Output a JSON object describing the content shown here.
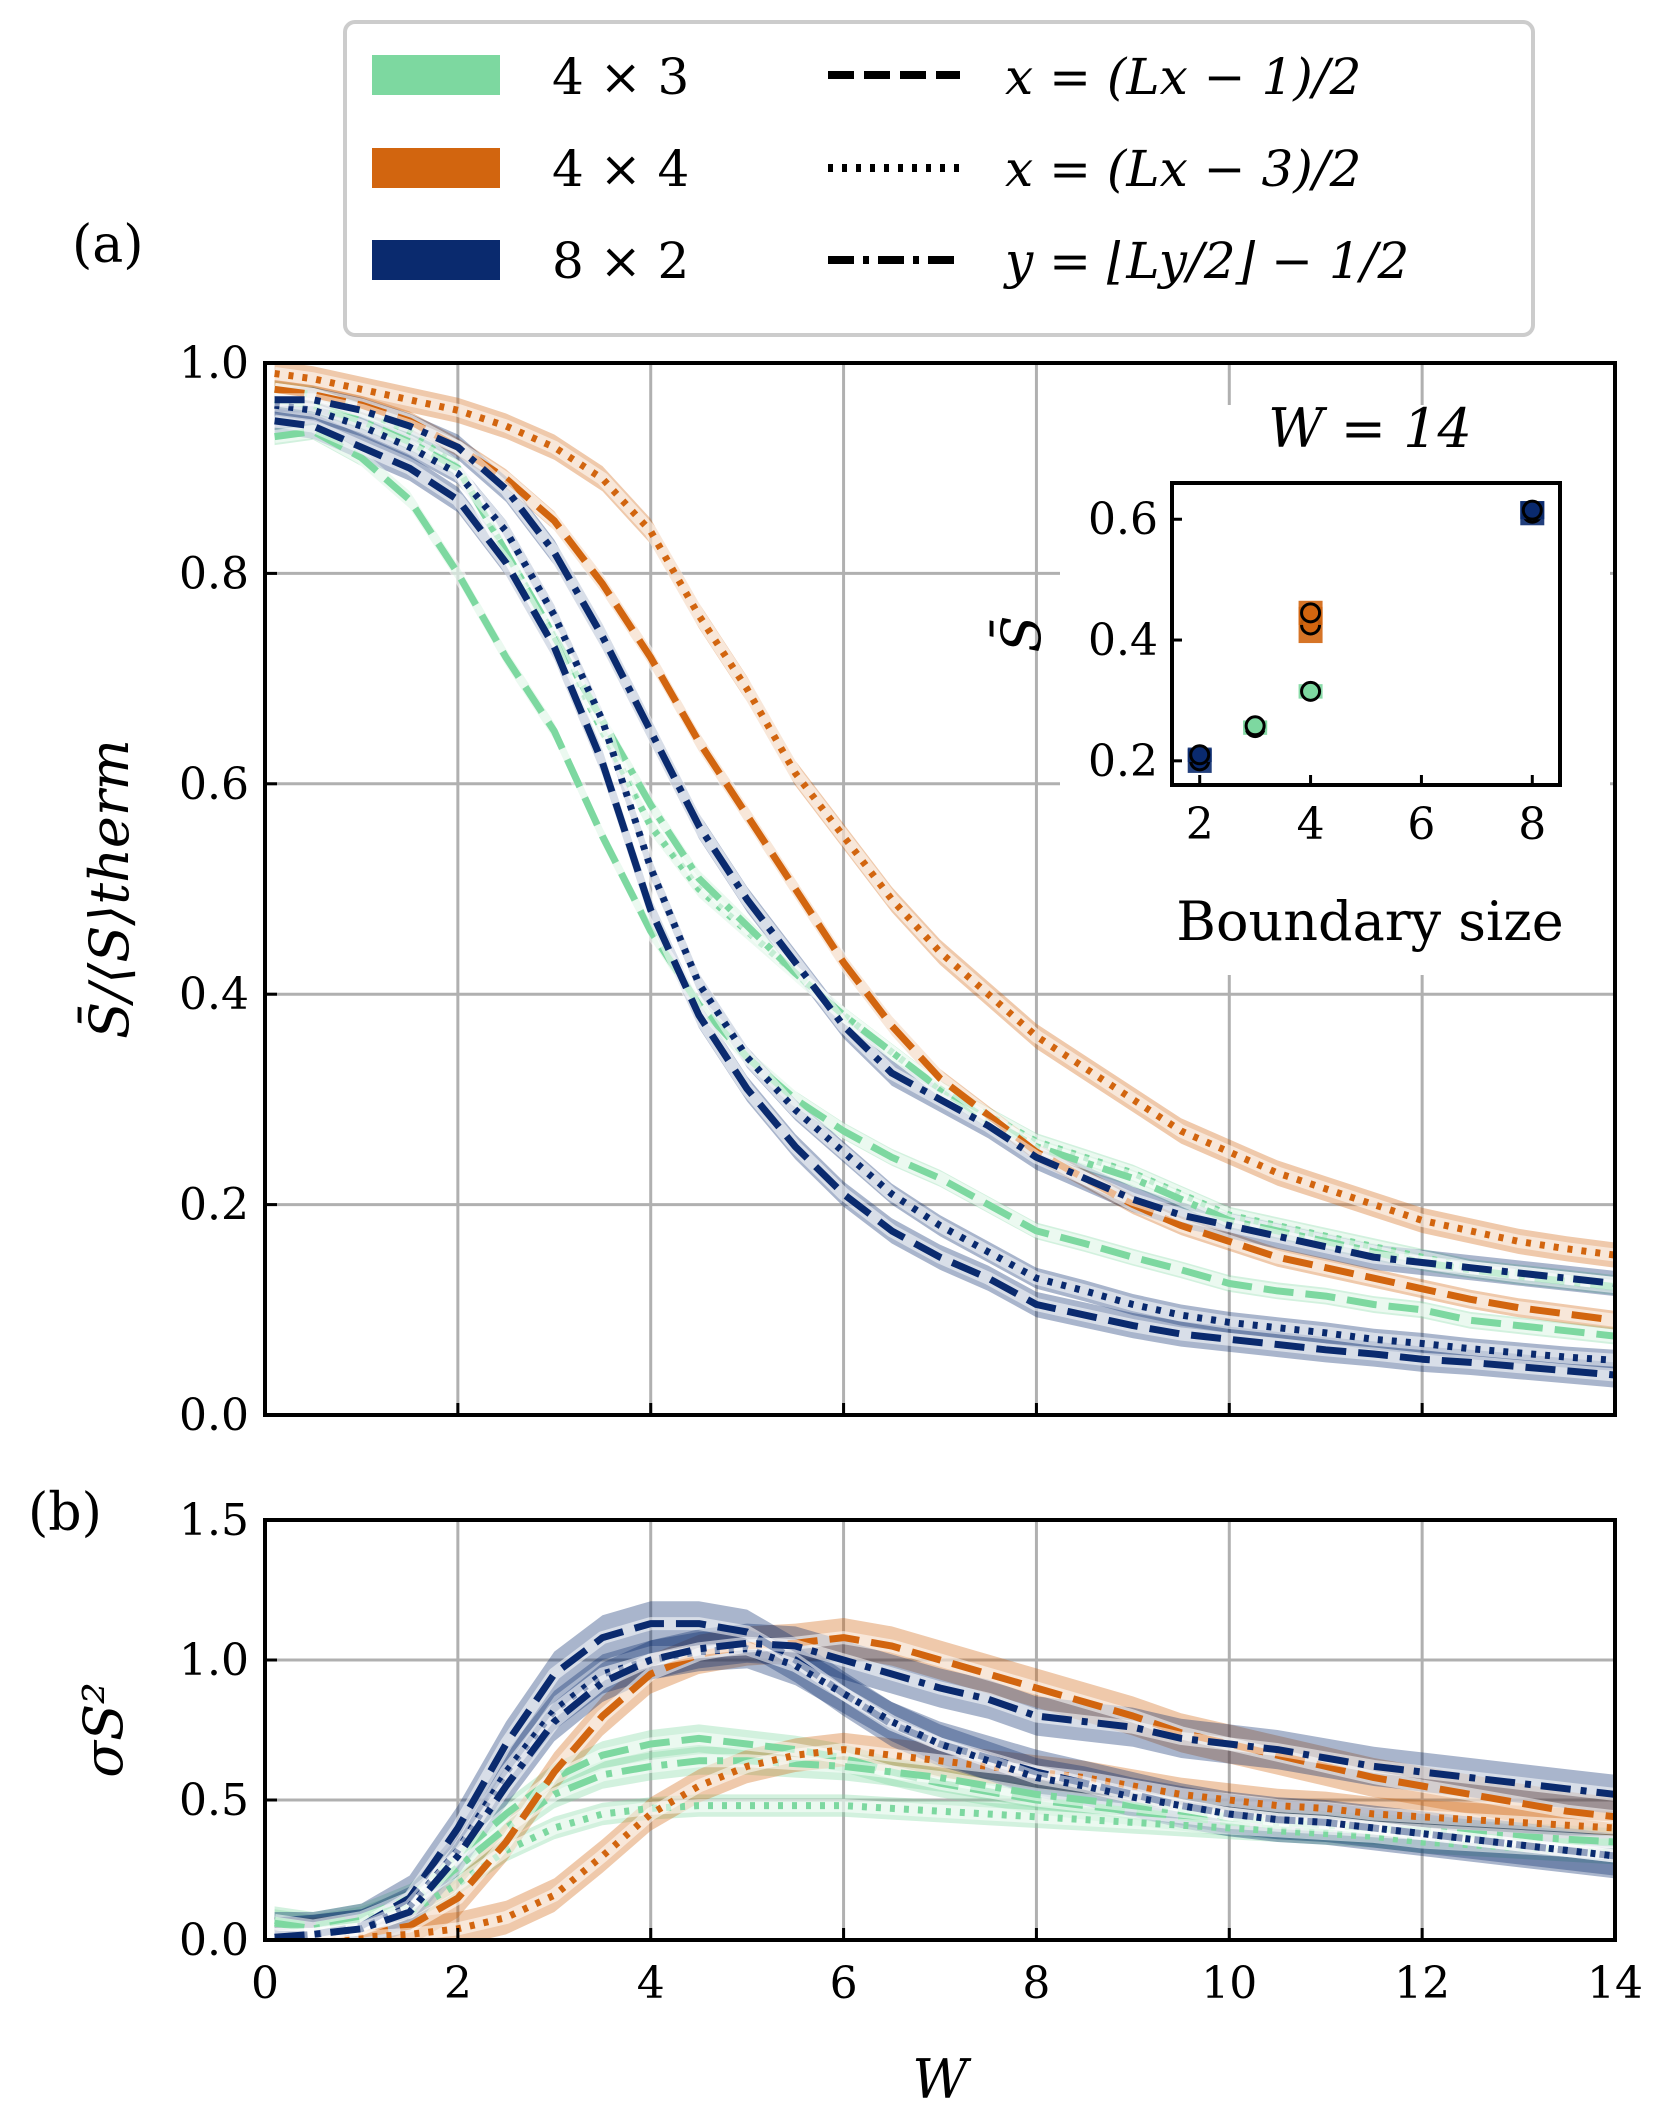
{
  "figure_labels": {
    "a": "(a)",
    "b": "(b)"
  },
  "colors": {
    "s43": "#7dd8a0",
    "s44": "#d2650f",
    "s82": "#0a2a6e",
    "grid": "#b0b0b0"
  },
  "legend": {
    "sizes": [
      {
        "key": "s43",
        "label": "4 × 3"
      },
      {
        "key": "s44",
        "label": "4 × 4"
      },
      {
        "key": "s82",
        "label": "8 × 2"
      }
    ],
    "cuts": [
      {
        "style": "dash",
        "label": "x = (Lx − 1)/2"
      },
      {
        "style": "dot",
        "label": "x = (Lx − 3)/2"
      },
      {
        "style": "dashdot",
        "label": "y = ⌊Ly/2⌋ − 1/2"
      }
    ]
  },
  "chart_data": [
    {
      "id": "a",
      "type": "line",
      "ylabel": "S̄/⟨S⟩therm",
      "xlabel": "",
      "xlim": [
        0,
        14
      ],
      "ylim": [
        0,
        1
      ],
      "xticks": [
        0,
        2,
        4,
        6,
        8,
        10,
        12,
        14
      ],
      "yticks": [
        "0.0",
        "0.2",
        "0.4",
        "0.6",
        "0.8",
        "1.0"
      ],
      "grid": true,
      "x": [
        0.1,
        0.5,
        1,
        1.5,
        2,
        2.5,
        3,
        3.5,
        4,
        4.5,
        5,
        5.5,
        6,
        6.5,
        7,
        7.5,
        8,
        8.5,
        9,
        9.5,
        10,
        10.5,
        11,
        11.5,
        12,
        12.5,
        13,
        13.5,
        14
      ],
      "series": [
        {
          "name": "4×3 x=(Lx−1)/2",
          "color": "s43",
          "style": "dash",
          "band": 0.008,
          "values": [
            0.93,
            0.935,
            0.91,
            0.87,
            0.8,
            0.72,
            0.65,
            0.55,
            0.46,
            0.39,
            0.34,
            0.3,
            0.27,
            0.245,
            0.225,
            0.2,
            0.175,
            0.163,
            0.15,
            0.138,
            0.125,
            0.118,
            0.113,
            0.105,
            0.1,
            0.09,
            0.085,
            0.08,
            0.075
          ]
        },
        {
          "name": "4×3 x=(Lx−3)/2",
          "color": "s43",
          "style": "dot",
          "band": 0.008,
          "values": [
            0.975,
            0.97,
            0.955,
            0.935,
            0.9,
            0.82,
            0.74,
            0.65,
            0.56,
            0.5,
            0.46,
            0.42,
            0.38,
            0.345,
            0.31,
            0.285,
            0.26,
            0.245,
            0.23,
            0.21,
            0.19,
            0.18,
            0.17,
            0.16,
            0.15,
            0.14,
            0.135,
            0.13,
            0.125
          ]
        },
        {
          "name": "4×3 y=⌊Ly/2⌋−1/2",
          "color": "s43",
          "style": "dashdot",
          "band": 0.008,
          "values": [
            0.965,
            0.96,
            0.945,
            0.925,
            0.9,
            0.82,
            0.74,
            0.66,
            0.58,
            0.51,
            0.465,
            0.42,
            0.38,
            0.345,
            0.31,
            0.28,
            0.255,
            0.24,
            0.225,
            0.205,
            0.185,
            0.175,
            0.165,
            0.155,
            0.145,
            0.138,
            0.132,
            0.127,
            0.122
          ]
        },
        {
          "name": "4×4 x=(Lx−1)/2",
          "color": "s44",
          "style": "dash",
          "band": 0.009,
          "values": [
            0.975,
            0.97,
            0.96,
            0.945,
            0.92,
            0.89,
            0.85,
            0.79,
            0.72,
            0.64,
            0.57,
            0.5,
            0.43,
            0.37,
            0.32,
            0.285,
            0.25,
            0.225,
            0.2,
            0.18,
            0.165,
            0.15,
            0.14,
            0.13,
            0.12,
            0.11,
            0.102,
            0.096,
            0.09
          ]
        },
        {
          "name": "4×4 x=(Lx−3)/2",
          "color": "s44",
          "style": "dot",
          "band": 0.012,
          "values": [
            0.99,
            0.985,
            0.975,
            0.965,
            0.955,
            0.94,
            0.92,
            0.89,
            0.84,
            0.76,
            0.69,
            0.61,
            0.55,
            0.49,
            0.44,
            0.4,
            0.36,
            0.33,
            0.3,
            0.27,
            0.25,
            0.23,
            0.215,
            0.2,
            0.185,
            0.175,
            0.165,
            0.158,
            0.152
          ]
        },
        {
          "name": "8×2 x=(Lx−1)/2",
          "color": "s82",
          "style": "dash",
          "band": 0.012,
          "values": [
            0.945,
            0.94,
            0.92,
            0.9,
            0.87,
            0.81,
            0.73,
            0.62,
            0.48,
            0.38,
            0.31,
            0.255,
            0.21,
            0.175,
            0.15,
            0.13,
            0.105,
            0.095,
            0.085,
            0.077,
            0.072,
            0.067,
            0.062,
            0.058,
            0.053,
            0.05,
            0.046,
            0.042,
            0.038
          ]
        },
        {
          "name": "8×2 x=(Lx−3)/2",
          "color": "s82",
          "style": "dot",
          "band": 0.01,
          "values": [
            0.96,
            0.955,
            0.94,
            0.92,
            0.895,
            0.84,
            0.76,
            0.66,
            0.52,
            0.41,
            0.34,
            0.29,
            0.25,
            0.21,
            0.18,
            0.155,
            0.13,
            0.118,
            0.105,
            0.095,
            0.088,
            0.083,
            0.078,
            0.072,
            0.068,
            0.063,
            0.059,
            0.055,
            0.052
          ]
        },
        {
          "name": "8×2 y=⌊Ly/2⌋−1/2",
          "color": "s82",
          "style": "dashdot",
          "band": 0.012,
          "values": [
            0.965,
            0.965,
            0.955,
            0.94,
            0.92,
            0.88,
            0.82,
            0.74,
            0.65,
            0.56,
            0.49,
            0.43,
            0.37,
            0.325,
            0.3,
            0.275,
            0.245,
            0.225,
            0.205,
            0.19,
            0.18,
            0.17,
            0.16,
            0.15,
            0.145,
            0.14,
            0.135,
            0.13,
            0.125
          ]
        }
      ]
    },
    {
      "id": "inset",
      "type": "scatter",
      "title": "W = 14",
      "xlabel": "Boundary  size",
      "ylabel": "S̄",
      "xlim": [
        1.5,
        8.5
      ],
      "ylim": [
        0.16,
        0.66
      ],
      "xticks": [
        2,
        4,
        6,
        8
      ],
      "yticks": [
        "0.2",
        "0.4",
        "0.6"
      ],
      "points": [
        {
          "x": 2,
          "y": 0.2,
          "err": 0.02,
          "color": "s82"
        },
        {
          "x": 2,
          "y": 0.21,
          "err": 0.012,
          "color": "s82"
        },
        {
          "x": 3,
          "y": 0.255,
          "err": 0.012,
          "color": "s43"
        },
        {
          "x": 3,
          "y": 0.258,
          "err": 0.008,
          "color": "s43"
        },
        {
          "x": 4,
          "y": 0.315,
          "err": 0.012,
          "color": "s43"
        },
        {
          "x": 4,
          "y": 0.425,
          "err": 0.03,
          "color": "s44"
        },
        {
          "x": 4,
          "y": 0.445,
          "err": 0.02,
          "color": "s44"
        },
        {
          "x": 8,
          "y": 0.61,
          "err": 0.02,
          "color": "s82"
        },
        {
          "x": 8,
          "y": 0.615,
          "err": 0.015,
          "color": "s82"
        }
      ]
    },
    {
      "id": "b",
      "type": "line",
      "ylabel": "σS²",
      "xlabel": "W",
      "xlim": [
        0,
        14
      ],
      "ylim": [
        0,
        1.5
      ],
      "xticks": [
        0,
        2,
        4,
        6,
        8,
        10,
        12,
        14
      ],
      "yticks": [
        "0.0",
        "0.5",
        "1.0",
        "1.5"
      ],
      "grid": true,
      "x": [
        0.1,
        0.5,
        1,
        1.5,
        2,
        2.5,
        3,
        3.5,
        4,
        4.5,
        5,
        5.5,
        6,
        6.5,
        7,
        7.5,
        8,
        8.5,
        9,
        9.5,
        10,
        10.5,
        11,
        11.5,
        12,
        12.5,
        13,
        13.5,
        14
      ],
      "series": [
        {
          "name": "4×3 x=(Lx−1)/2",
          "color": "s43",
          "style": "dash",
          "band": 0.05,
          "values": [
            0.07,
            0.05,
            0.08,
            0.15,
            0.3,
            0.45,
            0.58,
            0.66,
            0.7,
            0.72,
            0.7,
            0.68,
            0.65,
            0.6,
            0.56,
            0.53,
            0.5,
            0.48,
            0.46,
            0.44,
            0.42,
            0.41,
            0.4,
            0.39,
            0.38,
            0.37,
            0.36,
            0.35,
            0.35
          ]
        },
        {
          "name": "4×3 x=(Lx−3)/2",
          "color": "s43",
          "style": "dot",
          "band": 0.04,
          "values": [
            0.02,
            0.02,
            0.04,
            0.1,
            0.2,
            0.32,
            0.4,
            0.45,
            0.47,
            0.48,
            0.48,
            0.48,
            0.48,
            0.47,
            0.46,
            0.45,
            0.44,
            0.43,
            0.42,
            0.41,
            0.4,
            0.39,
            0.38,
            0.37,
            0.35,
            0.34,
            0.33,
            0.32,
            0.31
          ]
        },
        {
          "name": "4×3 y=⌊Ly/2⌋−1/2",
          "color": "s43",
          "style": "dashdot",
          "band": 0.05,
          "values": [
            0.06,
            0.04,
            0.07,
            0.13,
            0.26,
            0.4,
            0.52,
            0.59,
            0.62,
            0.64,
            0.64,
            0.63,
            0.62,
            0.6,
            0.58,
            0.55,
            0.52,
            0.5,
            0.48,
            0.46,
            0.44,
            0.42,
            0.41,
            0.4,
            0.39,
            0.38,
            0.37,
            0.36,
            0.35
          ]
        },
        {
          "name": "4×4 x=(Lx−1)/2",
          "color": "s44",
          "style": "dash",
          "band": 0.07,
          "values": [
            0.01,
            0.01,
            0.02,
            0.05,
            0.15,
            0.35,
            0.6,
            0.8,
            0.95,
            1.02,
            1.05,
            1.06,
            1.08,
            1.05,
            1.0,
            0.95,
            0.9,
            0.85,
            0.8,
            0.74,
            0.7,
            0.66,
            0.62,
            0.58,
            0.55,
            0.52,
            0.49,
            0.46,
            0.44
          ]
        },
        {
          "name": "4×4 x=(Lx−3)/2",
          "color": "s44",
          "style": "dot",
          "band": 0.06,
          "values": [
            0.0,
            0.0,
            0.01,
            0.02,
            0.04,
            0.08,
            0.16,
            0.3,
            0.45,
            0.55,
            0.62,
            0.66,
            0.68,
            0.66,
            0.64,
            0.62,
            0.6,
            0.58,
            0.55,
            0.52,
            0.5,
            0.48,
            0.47,
            0.45,
            0.44,
            0.43,
            0.42,
            0.41,
            0.4
          ]
        },
        {
          "name": "8×2 x=(Lx−1)/2",
          "color": "s82",
          "style": "dash",
          "band": 0.08,
          "values": [
            0.02,
            0.02,
            0.05,
            0.15,
            0.4,
            0.7,
            0.95,
            1.08,
            1.13,
            1.13,
            1.1,
            1.0,
            0.88,
            0.77,
            0.7,
            0.65,
            0.6,
            0.56,
            0.52,
            0.48,
            0.45,
            0.43,
            0.42,
            0.4,
            0.38,
            0.36,
            0.34,
            0.32,
            0.3
          ]
        },
        {
          "name": "8×2 x=(Lx−3)/2",
          "color": "s82",
          "style": "dot",
          "band": 0.07,
          "values": [
            0.01,
            0.02,
            0.04,
            0.12,
            0.32,
            0.6,
            0.82,
            0.95,
            1.0,
            1.03,
            1.04,
            0.98,
            0.88,
            0.78,
            0.7,
            0.64,
            0.58,
            0.55,
            0.51,
            0.48,
            0.45,
            0.43,
            0.42,
            0.4,
            0.38,
            0.36,
            0.34,
            0.32,
            0.3
          ]
        },
        {
          "name": "8×2 y=⌊Ly/2⌋−1/2",
          "color": "s82",
          "style": "dashdot",
          "band": 0.07,
          "values": [
            0.01,
            0.02,
            0.04,
            0.1,
            0.3,
            0.55,
            0.78,
            0.92,
            1.0,
            1.04,
            1.06,
            1.05,
            1.0,
            0.95,
            0.9,
            0.86,
            0.8,
            0.78,
            0.76,
            0.72,
            0.7,
            0.68,
            0.65,
            0.62,
            0.6,
            0.58,
            0.56,
            0.54,
            0.52
          ]
        }
      ]
    }
  ]
}
